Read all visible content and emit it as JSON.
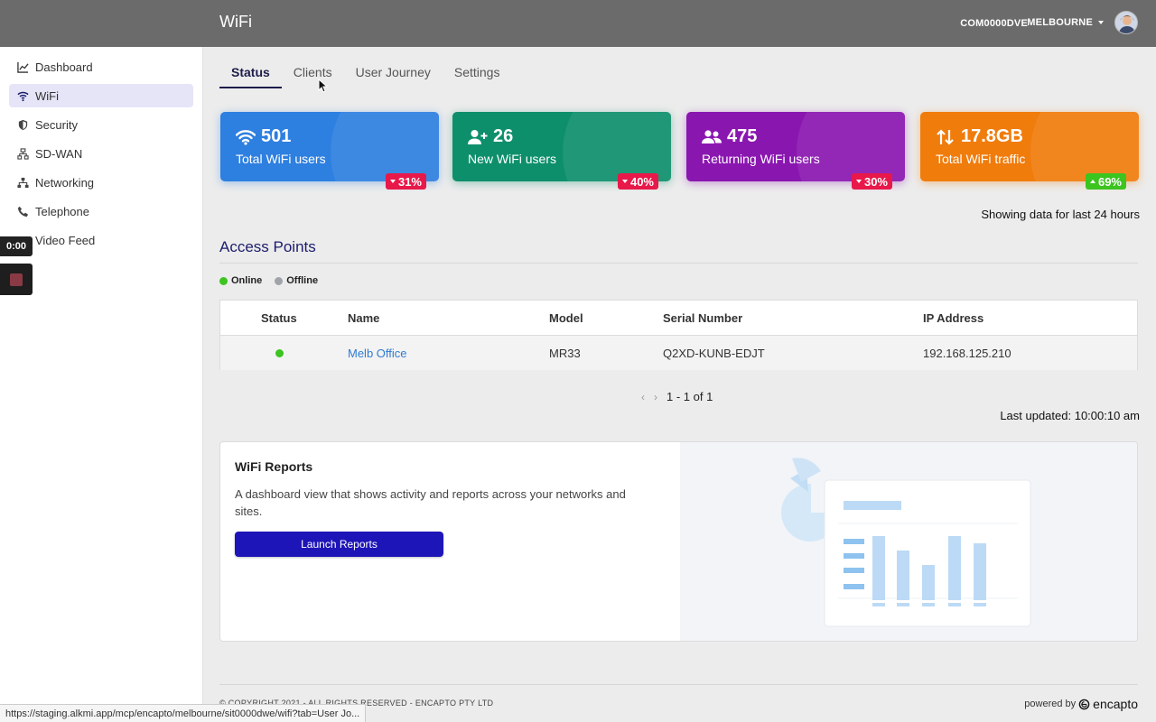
{
  "header": {
    "title": "WiFi",
    "account": "COM0000DVE",
    "site": "MELBOURNE"
  },
  "sidebar": {
    "items": [
      {
        "label": "Dashboard",
        "icon": "chart-line-icon"
      },
      {
        "label": "WiFi",
        "icon": "wifi-icon",
        "active": true
      },
      {
        "label": "Security",
        "icon": "shield-icon"
      },
      {
        "label": "SD-WAN",
        "icon": "network-icon"
      },
      {
        "label": "Networking",
        "icon": "sitemap-icon"
      },
      {
        "label": "Telephone",
        "icon": "phone-icon"
      },
      {
        "label": "Video Feed",
        "icon": "video-icon"
      }
    ]
  },
  "recorder": {
    "time": "0:00"
  },
  "tabs": [
    {
      "label": "Status",
      "active": true
    },
    {
      "label": "Clients"
    },
    {
      "label": "User Journey"
    },
    {
      "label": "Settings"
    }
  ],
  "stats": [
    {
      "value": "501",
      "label": "Total WiFi users",
      "change": "31%",
      "direction": "down",
      "color": "#2d7fe0",
      "badge_color": "#e8184a"
    },
    {
      "value": "26",
      "label": "New WiFi users",
      "change": "40%",
      "direction": "down",
      "color": "#0e8f6c",
      "badge_color": "#e8184a"
    },
    {
      "value": "475",
      "label": "Returning WiFi users",
      "change": "30%",
      "direction": "down",
      "color": "#8a16b0",
      "badge_color": "#e8184a"
    },
    {
      "value": "17.8GB",
      "label": "Total WiFi traffic",
      "change": "69%",
      "direction": "up",
      "color": "#f07c0c",
      "badge_color": "#3cc41f"
    }
  ],
  "showing_text": "Showing data for last 24 hours",
  "access_points": {
    "title": "Access Points",
    "legend": {
      "online": "Online",
      "offline": "Offline",
      "online_color": "#3cc41f",
      "offline_color": "#a0a4a8"
    },
    "columns": [
      "Status",
      "Name",
      "Model",
      "Serial Number",
      "IP Address"
    ],
    "rows": [
      {
        "status": "online",
        "name": "Melb Office",
        "model": "MR33",
        "serial": "Q2XD-KUNB-EDJT",
        "ip": "192.168.125.210"
      }
    ],
    "pagination": "1 - 1 of 1",
    "last_updated": "Last updated: 10:00:10 am"
  },
  "reports": {
    "title": "WiFi Reports",
    "description": "A dashboard view that shows activity and reports across your networks and sites.",
    "button": "Launch Reports"
  },
  "footer": {
    "copyright": "© COPYRIGHT 2021 - ALL RIGHTS RESERVED - ENCAPTO PTY LTD",
    "powered_by": "powered by",
    "brand": "encapto"
  },
  "status_bar_url": "https://staging.alkmi.app/mcp/encapto/melbourne/sit0000dwe/wifi?tab=User Jo..."
}
